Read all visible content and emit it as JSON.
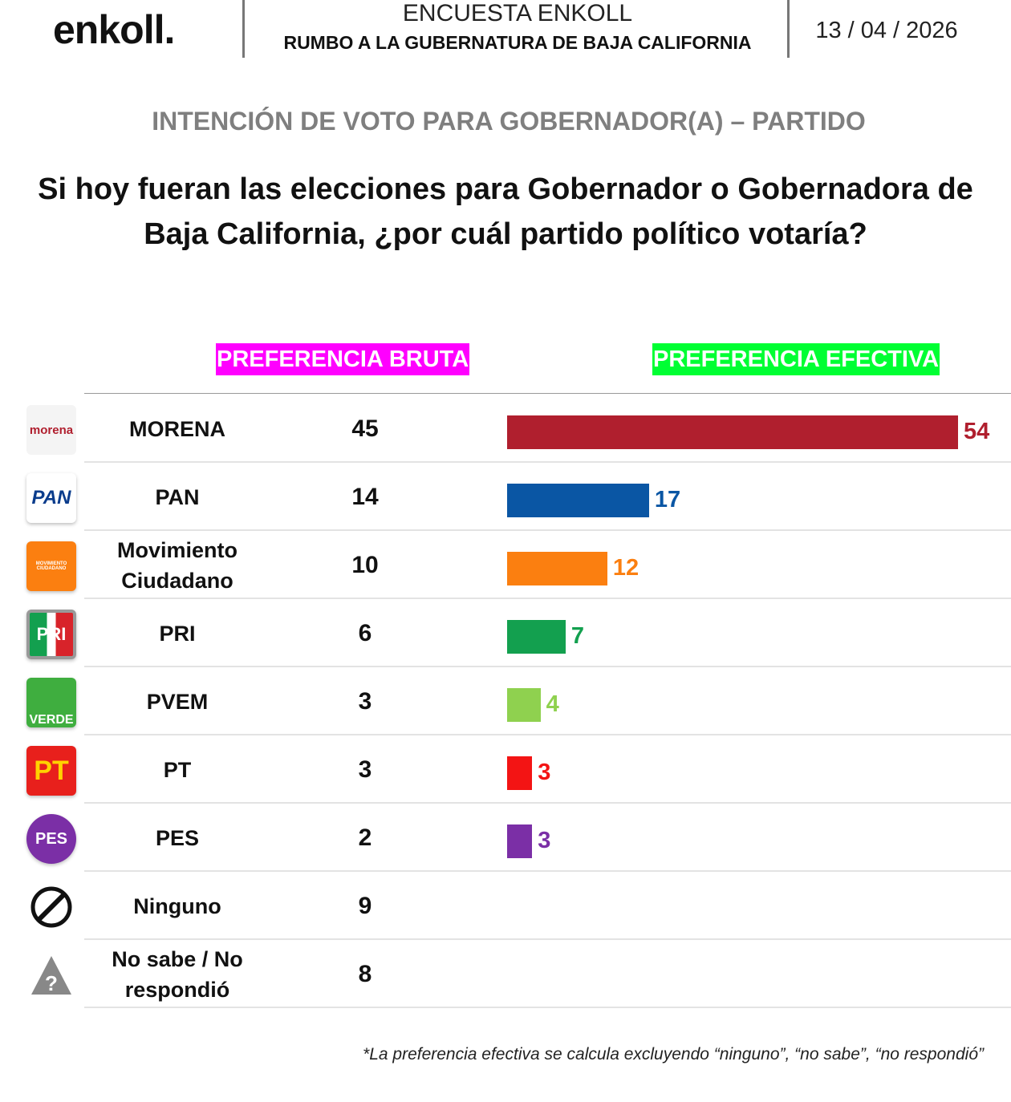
{
  "header": {
    "brand": "enkoll.",
    "title": "ENCUESTA ENKOLL",
    "subtitle": "RUMBO A LA GUBERNATURA DE BAJA CALIFORNIA",
    "date": "13 / 04 / 2026"
  },
  "section_title": "INTENCIÓN DE VOTO PARA GOBERNADOR(A) – PARTIDO",
  "question": "Si hoy fueran las elecciones para Gobernador o Gobernadora de Baja California, ¿por cuál partido político votaría?",
  "footnote": "*La preferencia efectiva se calcula excluyendo “ninguno”, “no sabe”, “no respondió”",
  "chart_data": {
    "type": "bar",
    "columns": [
      "PREFERENCIA BRUTA",
      "PREFERENCIA EFECTIVA"
    ],
    "categories": [
      "MORENA",
      "PAN",
      "Movimiento Ciudadano",
      "PRI",
      "PVEM",
      "PT",
      "PES",
      "Ninguno",
      "No sabe / No respondió"
    ],
    "series": [
      {
        "name": "PREFERENCIA BRUTA",
        "values": [
          45,
          14,
          10,
          6,
          3,
          3,
          2,
          9,
          8
        ]
      },
      {
        "name": "PREFERENCIA EFECTIVA",
        "values": [
          54,
          17,
          12,
          7,
          4,
          3,
          3,
          null,
          null
        ]
      }
    ],
    "colors": [
      "#b01f2e",
      "#0a56a4",
      "#fb7f10",
      "#13a04f",
      "#8fd14f",
      "#f31414",
      "#7b2fa6",
      null,
      null
    ],
    "logo_text": [
      "morena",
      "PAN",
      "MOVIMIENTO CIUDADANO",
      "PRI",
      "VERDE",
      "PT",
      "PES",
      null,
      "?"
    ],
    "xlim": [
      0,
      54
    ]
  }
}
